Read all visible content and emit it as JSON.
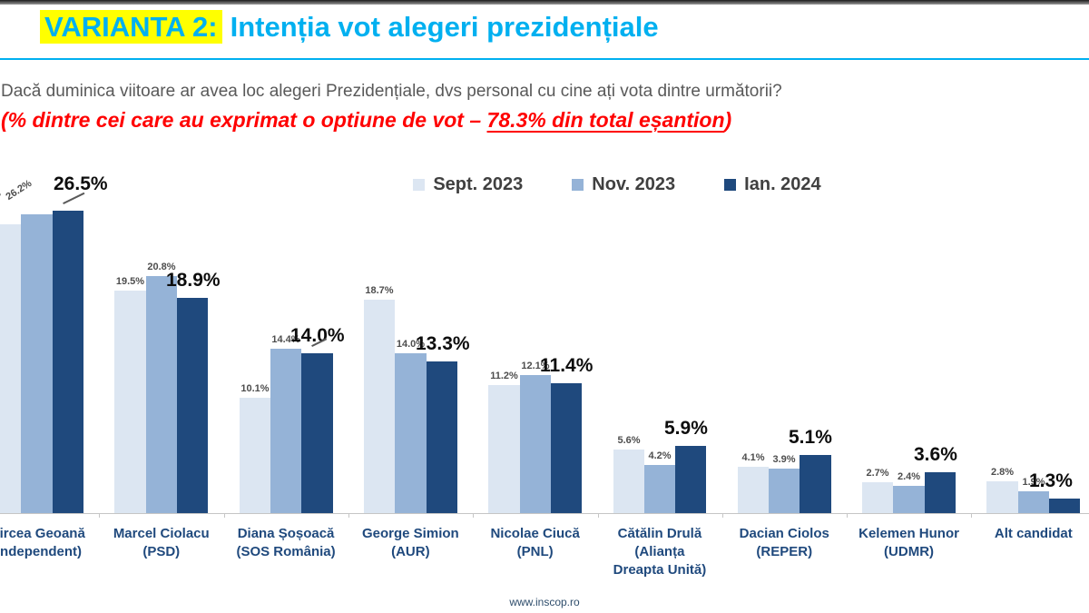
{
  "header": {
    "variant_label": "VARIANTA 2:",
    "title": "Intenția vot alegeri prezidențiale"
  },
  "question": "Dacă duminica viitoare ar avea loc alegeri Prezidențiale, dvs personal cu cine ați vota dintre următorii?",
  "note": {
    "prefix": "(% dintre cei care au exprimat o optiune de vot – ",
    "underlined": "78.3% din total eșantion",
    "suffix": ")"
  },
  "footer": "www.inscop.ro",
  "colors": {
    "title": "#00b0f0",
    "highlight": "#ffff00",
    "note": "#ff0000",
    "category_label": "#1f497d"
  },
  "chart_data": {
    "type": "bar",
    "title": "Intenția vot alegeri prezidențiale",
    "subtitle": "% dintre cei care au exprimat o optiune de vot – 78.3% din total eșantion",
    "categories": [
      [
        "Mircea Geoană",
        "(Independent)"
      ],
      [
        "Marcel Ciolacu",
        "(PSD)"
      ],
      [
        "Diana Șoșoacă",
        "(SOS România)"
      ],
      [
        "George Simion",
        "(AUR)"
      ],
      [
        "Nicolae Ciucă",
        "(PNL)"
      ],
      [
        "Cătălin Drulă",
        "(Alianța",
        "Dreapta Unită)"
      ],
      [
        "Dacian Ciolos",
        "(REPER)"
      ],
      [
        "Kelemen Hunor",
        "(UDMR)"
      ],
      [
        "Alt candidat"
      ]
    ],
    "series": [
      {
        "name": "Sept. 2023",
        "color": "#dce6f2",
        "values": [
          25.3,
          19.5,
          10.1,
          18.7,
          11.2,
          5.6,
          4.1,
          2.7,
          2.8
        ]
      },
      {
        "name": "Nov. 2023",
        "color": "#95b3d7",
        "values": [
          26.2,
          20.8,
          14.4,
          14.0,
          12.1,
          4.2,
          3.9,
          2.4,
          1.9
        ]
      },
      {
        "name": "Ian. 2024",
        "color": "#1f497d",
        "values": [
          26.5,
          18.9,
          14.0,
          13.3,
          11.4,
          5.9,
          5.1,
          3.6,
          1.3
        ]
      }
    ],
    "value_suffix": "%",
    "ylim": [
      0,
      29.5
    ],
    "grid": false,
    "legend_position": "top"
  }
}
